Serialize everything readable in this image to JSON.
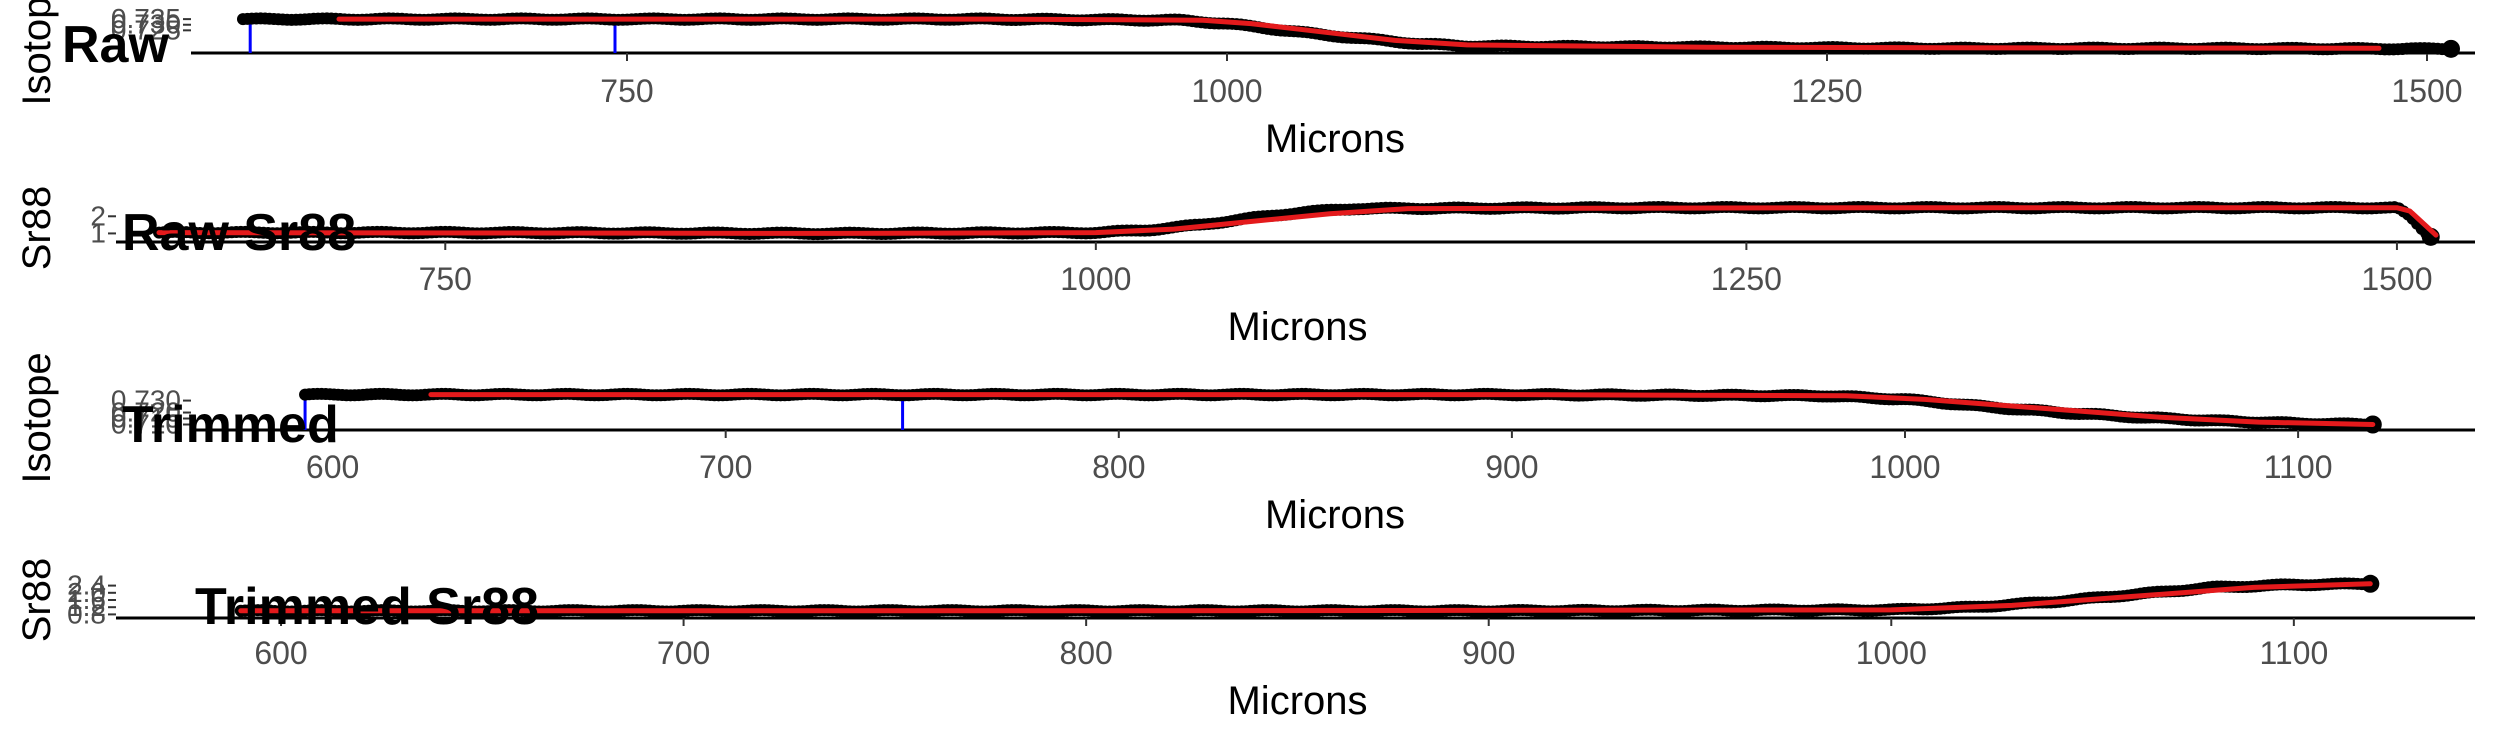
{
  "chart_data": [
    {
      "type": "line",
      "title": "Raw",
      "xlabel": "Microns",
      "ylabel": "Isotope",
      "xlim": [
        570,
        1520
      ],
      "ylim": [
        0.7048,
        0.736
      ],
      "x_ticks": [
        750,
        1000,
        1250,
        1500
      ],
      "y_ticks": [
        0.725,
        0.73,
        0.735
      ],
      "y_tick_labels": [
        "0.725",
        "0.730",
        "0.735"
      ],
      "grid": false,
      "series": [
        {
          "style": "points",
          "color": "#000000",
          "x": [
            590,
            700,
            800,
            900,
            980,
            1000,
            1020,
            1040,
            1060,
            1080,
            1100,
            1200,
            1300,
            1400,
            1510
          ],
          "y": [
            0.735,
            0.735,
            0.735,
            0.735,
            0.734,
            0.731,
            0.726,
            0.721,
            0.717,
            0.713,
            0.711,
            0.71,
            0.709,
            0.709,
            0.7085
          ]
        },
        {
          "style": "smooth",
          "color": "#e41a1c",
          "x": [
            630,
            900,
            990,
            1010,
            1030,
            1050,
            1070,
            1100,
            1200,
            1300,
            1480
          ],
          "y": [
            0.735,
            0.735,
            0.734,
            0.731,
            0.726,
            0.721,
            0.716,
            0.712,
            0.71,
            0.7095,
            0.709
          ]
        }
      ],
      "vlines": {
        "color": "#0000ff",
        "x": [
          593,
          745
        ]
      }
    },
    {
      "type": "line",
      "title": "Raw Sr88",
      "xlabel": "Microns",
      "ylabel": "Sr88",
      "xlim": [
        625,
        1530
      ],
      "ylim": [
        0.5,
        2.6
      ],
      "x_ticks": [
        750,
        1000,
        1250,
        1500
      ],
      "y_ticks": [
        1,
        2
      ],
      "y_tick_labels": [
        "1",
        "2"
      ],
      "grid": false,
      "series": [
        {
          "style": "points",
          "color": "#000000",
          "x": [
            640,
            750,
            900,
            1000,
            1020,
            1040,
            1060,
            1080,
            1100,
            1200,
            1300,
            1400,
            1500,
            1505,
            1510,
            1513
          ],
          "y": [
            1.05,
            1.05,
            1.0,
            1.05,
            1.2,
            1.5,
            1.9,
            2.25,
            2.45,
            2.5,
            2.5,
            2.5,
            2.5,
            2.0,
            1.2,
            0.8
          ]
        },
        {
          "style": "smooth",
          "color": "#e41a1c",
          "x": [
            640,
            900,
            1000,
            1030,
            1060,
            1090,
            1120,
            1300,
            1500,
            1505,
            1515
          ],
          "y": [
            1.05,
            1.0,
            1.05,
            1.25,
            1.7,
            2.15,
            2.45,
            2.5,
            2.5,
            2.3,
            0.9
          ]
        }
      ]
    },
    {
      "type": "line",
      "title": "Trimmed",
      "xlabel": "Microns",
      "ylabel": "Isotope",
      "xlim": [
        565,
        1145
      ],
      "ylim": [
        0.7054,
        0.7355
      ],
      "x_ticks": [
        600,
        700,
        800,
        900,
        1000,
        1100
      ],
      "y_ticks": [
        0.71,
        0.715,
        0.72,
        0.73
      ],
      "y_tick_labels": [
        "0.710",
        "0.715",
        "0.720",
        "0.730"
      ],
      "grid": false,
      "series": [
        {
          "style": "points",
          "color": "#000000",
          "x": [
            593,
            700,
            800,
            900,
            980,
            1000,
            1020,
            1040,
            1060,
            1080,
            1100,
            1119
          ],
          "y": [
            0.735,
            0.735,
            0.735,
            0.735,
            0.734,
            0.731,
            0.725,
            0.72,
            0.716,
            0.713,
            0.711,
            0.71
          ]
        },
        {
          "style": "smooth",
          "color": "#e41a1c",
          "x": [
            625,
            900,
            985,
            1005,
            1025,
            1045,
            1065,
            1090,
            1119
          ],
          "y": [
            0.735,
            0.735,
            0.734,
            0.731,
            0.726,
            0.721,
            0.716,
            0.712,
            0.71
          ]
        }
      ],
      "vlines": {
        "color": "#0000ff",
        "x": [
          593,
          745
        ]
      }
    },
    {
      "type": "line",
      "title": "Trimmed Sr88",
      "xlabel": "Microns",
      "ylabel": "Sr88",
      "xlim": [
        560,
        1145
      ],
      "ylim": [
        0.6,
        2.6
      ],
      "x_ticks": [
        600,
        700,
        800,
        900,
        1000,
        1100
      ],
      "y_ticks": [
        0.8,
        1.2,
        1.6,
        2.0,
        2.4
      ],
      "y_tick_labels": [
        "0.8",
        "1.2",
        "1.6",
        "2.0",
        "2.4"
      ],
      "grid": false,
      "series": [
        {
          "style": "points",
          "color": "#000000",
          "x": [
            590,
            700,
            800,
            900,
            1000,
            1020,
            1040,
            1060,
            1080,
            1100,
            1119
          ],
          "y": [
            1.0,
            1.0,
            1.0,
            1.0,
            1.05,
            1.2,
            1.5,
            1.9,
            2.3,
            2.45,
            2.5
          ]
        },
        {
          "style": "smooth",
          "color": "#e41a1c",
          "x": [
            590,
            800,
            1000,
            1030,
            1060,
            1090,
            1119
          ],
          "y": [
            1.0,
            1.0,
            1.05,
            1.3,
            1.8,
            2.3,
            2.5
          ]
        }
      ]
    }
  ]
}
